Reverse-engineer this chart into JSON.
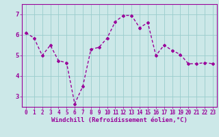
{
  "x": [
    0,
    1,
    2,
    3,
    4,
    5,
    6,
    7,
    8,
    9,
    10,
    11,
    12,
    13,
    14,
    15,
    16,
    17,
    18,
    19,
    20,
    21,
    22,
    23
  ],
  "y": [
    6.1,
    5.85,
    5.0,
    5.5,
    4.75,
    4.65,
    2.65,
    3.5,
    5.3,
    5.4,
    5.85,
    6.65,
    6.95,
    6.95,
    6.35,
    6.6,
    5.0,
    5.5,
    5.25,
    5.05,
    4.6,
    4.6,
    4.65,
    4.6
  ],
  "line_color": "#990099",
  "marker": "D",
  "marker_size": 2.0,
  "bg_color": "#cce8e8",
  "grid_color": "#99cccc",
  "xlabel": "Windchill (Refroidissement éolien,°C)",
  "ylabel": "",
  "ylim": [
    2.5,
    7.5
  ],
  "xlim": [
    -0.5,
    23.5
  ],
  "yticks": [
    3,
    4,
    5,
    6,
    7
  ],
  "xticks": [
    0,
    1,
    2,
    3,
    4,
    5,
    6,
    7,
    8,
    9,
    10,
    11,
    12,
    13,
    14,
    15,
    16,
    17,
    18,
    19,
    20,
    21,
    22,
    23
  ],
  "xtick_labels": [
    "0",
    "1",
    "2",
    "3",
    "4",
    "5",
    "6",
    "7",
    "8",
    "9",
    "10",
    "11",
    "12",
    "13",
    "14",
    "15",
    "16",
    "17",
    "18",
    "19",
    "20",
    "21",
    "22",
    "23"
  ],
  "tick_color": "#990099",
  "axis_color": "#990099",
  "label_color": "#990099",
  "label_fontsize": 6.5,
  "tick_fontsize": 5.5,
  "line_width": 1.0
}
